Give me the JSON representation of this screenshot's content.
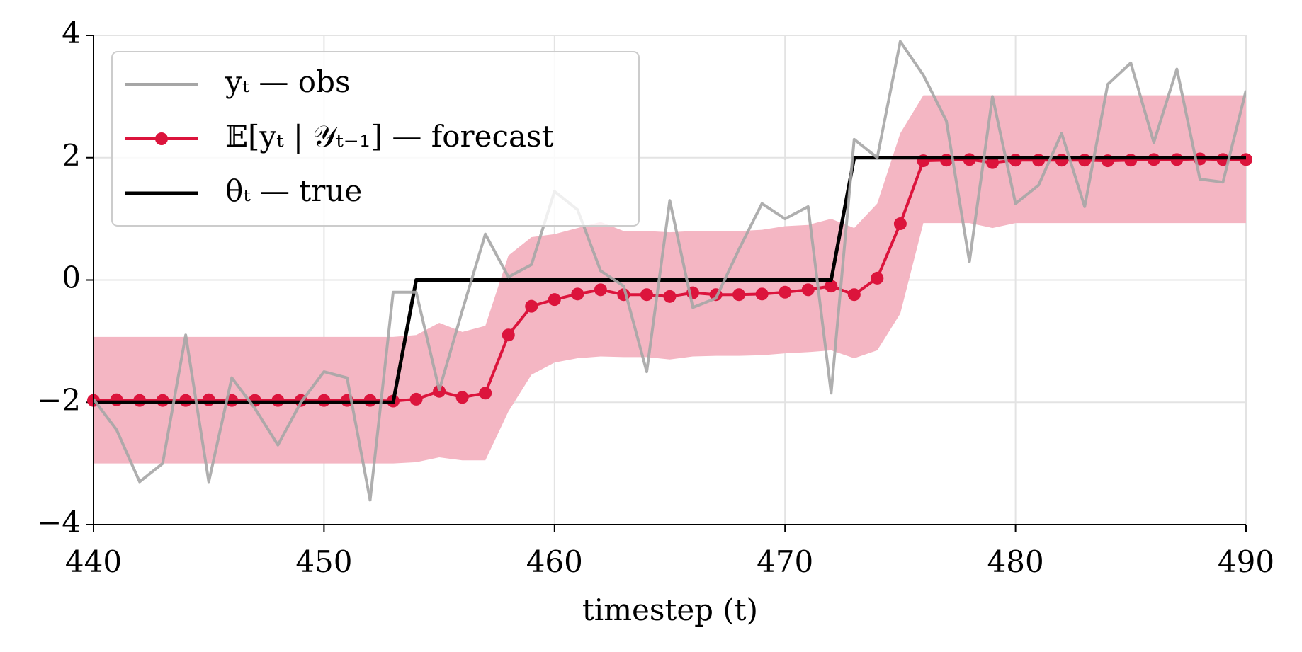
{
  "chart_data": {
    "type": "line",
    "xlabel": "timestep (t)",
    "x": [
      440,
      441,
      442,
      443,
      444,
      445,
      446,
      447,
      448,
      449,
      450,
      451,
      452,
      453,
      454,
      455,
      456,
      457,
      458,
      459,
      460,
      461,
      462,
      463,
      464,
      465,
      466,
      467,
      468,
      469,
      470,
      471,
      472,
      473,
      474,
      475,
      476,
      477,
      478,
      479,
      480,
      481,
      482,
      483,
      484,
      485,
      486,
      487,
      488,
      489,
      490
    ],
    "band": {
      "color": "#f4b6c3",
      "upper": [
        -0.93,
        -0.93,
        -0.93,
        -0.93,
        -0.93,
        -0.93,
        -0.93,
        -0.93,
        -0.93,
        -0.93,
        -0.93,
        -0.93,
        -0.93,
        -0.93,
        -0.9,
        -0.7,
        -0.85,
        -0.75,
        0.4,
        0.7,
        0.75,
        0.85,
        0.95,
        0.8,
        0.8,
        0.78,
        0.8,
        0.8,
        0.8,
        0.82,
        0.88,
        0.9,
        1.0,
        0.85,
        1.25,
        2.4,
        3.02,
        3.02,
        3.02,
        3.02,
        3.02,
        3.02,
        3.02,
        3.02,
        3.02,
        3.02,
        3.02,
        3.02,
        3.02,
        3.02,
        3.02
      ],
      "lower": [
        -3.0,
        -3.0,
        -3.0,
        -3.0,
        -3.0,
        -3.0,
        -3.0,
        -3.0,
        -3.0,
        -3.0,
        -3.0,
        -3.0,
        -3.0,
        -3.0,
        -2.98,
        -2.9,
        -2.95,
        -2.95,
        -2.15,
        -1.55,
        -1.35,
        -1.28,
        -1.25,
        -1.26,
        -1.26,
        -1.3,
        -1.25,
        -1.24,
        -1.24,
        -1.23,
        -1.2,
        -1.18,
        -1.15,
        -1.28,
        -1.15,
        -0.55,
        0.93,
        0.93,
        0.93,
        0.85,
        0.93,
        0.93,
        0.93,
        0.93,
        0.93,
        0.93,
        0.93,
        0.93,
        0.93,
        0.93,
        0.93
      ]
    },
    "series": [
      {
        "name": "yₜ — obs",
        "color": "#a6a6a6",
        "width": 4,
        "markers": false,
        "values": [
          -1.95,
          -2.45,
          -3.3,
          -3.0,
          -0.9,
          -3.3,
          -1.6,
          -2.1,
          -2.7,
          -2.0,
          -1.5,
          -1.6,
          -3.6,
          -0.2,
          -0.2,
          -1.8,
          -0.5,
          0.75,
          0.05,
          0.25,
          1.45,
          1.15,
          0.15,
          -0.1,
          -1.5,
          1.3,
          -0.45,
          -0.3,
          0.5,
          1.25,
          1.0,
          1.2,
          -1.85,
          2.3,
          2.0,
          3.9,
          3.35,
          2.6,
          0.3,
          3.0,
          1.25,
          1.55,
          2.4,
          1.2,
          3.2,
          3.55,
          2.25,
          3.45,
          1.65,
          1.6,
          3.1
        ]
      },
      {
        "name": "𝔼[yₜ | 𝒴ₜ₋₁] — forecast",
        "color": "#dc143c",
        "width": 4,
        "markers": true,
        "values": [
          -1.97,
          -1.96,
          -1.97,
          -1.97,
          -1.97,
          -1.96,
          -1.97,
          -1.97,
          -1.97,
          -1.97,
          -1.97,
          -1.97,
          -1.97,
          -1.98,
          -1.95,
          -1.82,
          -1.92,
          -1.85,
          -0.9,
          -0.43,
          -0.32,
          -0.23,
          -0.16,
          -0.24,
          -0.24,
          -0.27,
          -0.21,
          -0.24,
          -0.24,
          -0.23,
          -0.2,
          -0.16,
          -0.1,
          -0.24,
          0.03,
          0.92,
          1.95,
          1.96,
          1.97,
          1.92,
          1.96,
          1.96,
          1.96,
          1.96,
          1.95,
          1.96,
          1.97,
          1.97,
          1.98,
          1.97,
          1.97
        ]
      },
      {
        "name": "θₜ — true",
        "color": "#000000",
        "width": 5,
        "markers": false,
        "values": [
          -2,
          -2,
          -2,
          -2,
          -2,
          -2,
          -2,
          -2,
          -2,
          -2,
          -2,
          -2,
          -2,
          -2,
          0,
          0,
          0,
          0,
          0,
          0,
          0,
          0,
          0,
          0,
          0,
          0,
          0,
          0,
          0,
          0,
          0,
          0,
          0,
          2,
          2,
          2,
          2,
          2,
          2,
          2,
          2,
          2,
          2,
          2,
          2,
          2,
          2,
          2,
          2,
          2,
          2
        ]
      }
    ],
    "draw_order": [
      1,
      2,
      0
    ],
    "xlim": [
      440,
      490
    ],
    "xticks": [
      440,
      450,
      460,
      470,
      480,
      490
    ],
    "ylim": [
      -4,
      4
    ],
    "yticks": [
      {
        "value": -4,
        "label": "−4"
      },
      {
        "value": -2,
        "label": "−2"
      },
      0,
      2,
      4
    ],
    "grid": true,
    "legend": "upper left"
  }
}
